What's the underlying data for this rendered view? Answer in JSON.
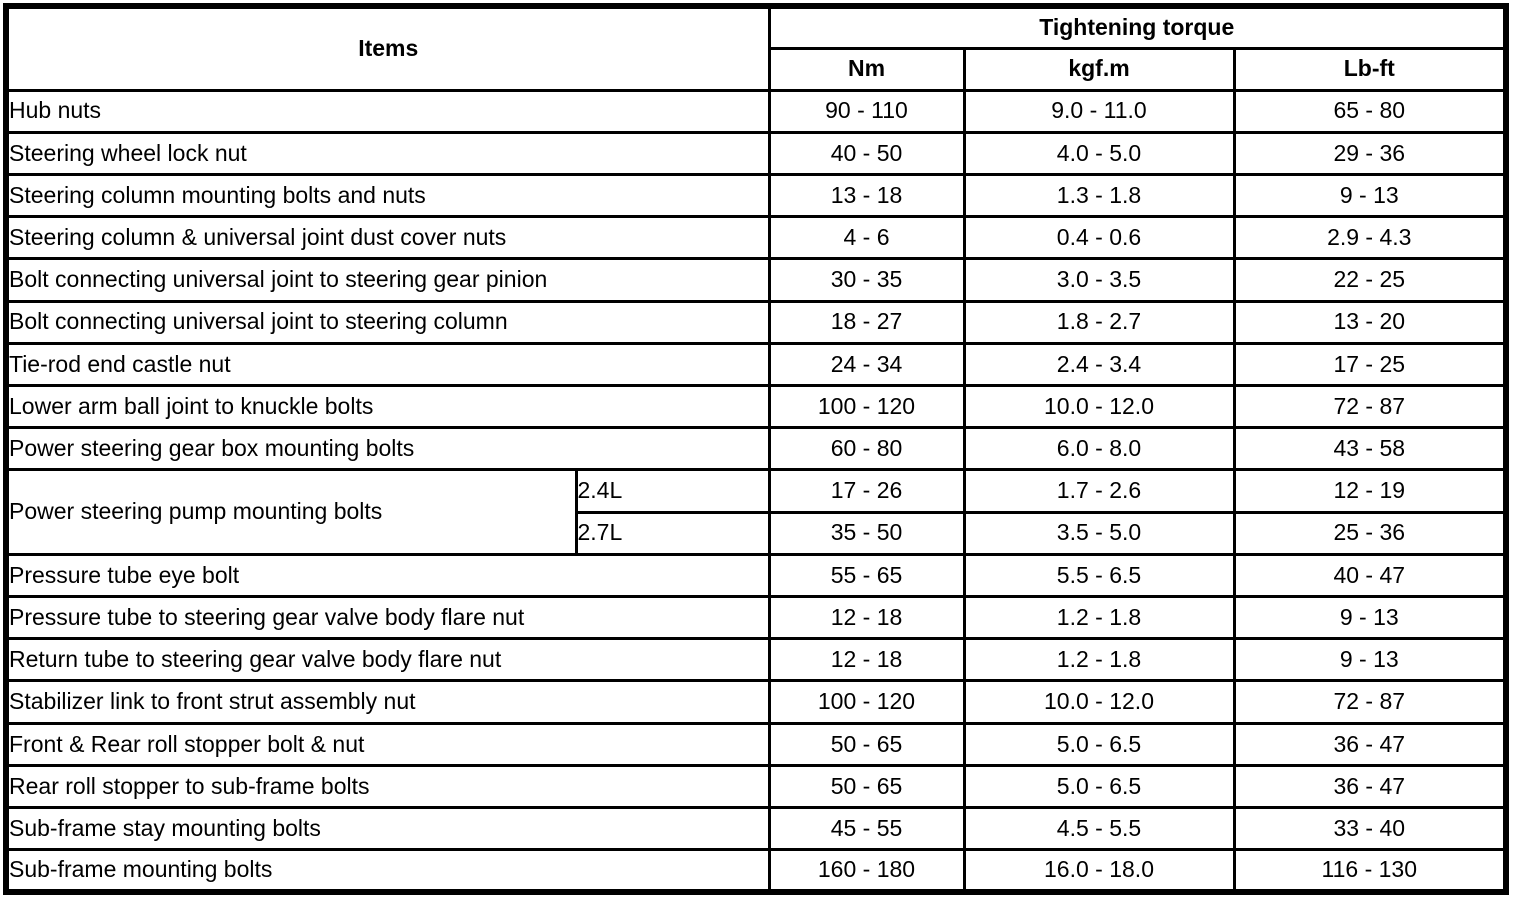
{
  "table": {
    "header": {
      "items_label": "Items",
      "torque_label": "Tightening torque",
      "units": [
        "Nm",
        "kgf.m",
        "Lb-ft"
      ]
    },
    "rows": [
      {
        "item": "Hub nuts",
        "nm": "90 - 110",
        "kgfm": "9.0 - 11.0",
        "lbft": "65 - 80"
      },
      {
        "item": "Steering wheel lock nut",
        "nm": "40 - 50",
        "kgfm": "4.0 - 5.0",
        "lbft": "29 - 36"
      },
      {
        "item": "Steering column mounting bolts and nuts",
        "nm": "13 - 18",
        "kgfm": "1.3 - 1.8",
        "lbft": "9 - 13"
      },
      {
        "item": "Steering column & universal joint dust cover nuts",
        "nm": "4 - 6",
        "kgfm": "0.4 - 0.6",
        "lbft": "2.9 - 4.3"
      },
      {
        "item": "Bolt connecting universal joint to steering gear pinion",
        "nm": "30 - 35",
        "kgfm": "3.0 - 3.5",
        "lbft": "22 - 25"
      },
      {
        "item": "Bolt connecting universal joint to steering column",
        "nm": "18 - 27",
        "kgfm": "1.8 - 2.7",
        "lbft": "13 - 20"
      },
      {
        "item": "Tie-rod end castle nut",
        "nm": "24 - 34",
        "kgfm": "2.4 - 3.4",
        "lbft": "17 - 25"
      },
      {
        "item": "Lower arm ball joint to knuckle bolts",
        "nm": "100 - 120",
        "kgfm": "10.0 - 12.0",
        "lbft": "72 - 87"
      },
      {
        "item": "Power steering gear box mounting bolts",
        "nm": "60 - 80",
        "kgfm": "6.0 - 8.0",
        "lbft": "43 - 58"
      },
      {
        "item": "Power steering pump mounting bolts",
        "variants": [
          {
            "engine": "2.4L",
            "nm": "17 - 26",
            "kgfm": "1.7 - 2.6",
            "lbft": "12 - 19"
          },
          {
            "engine": "2.7L",
            "nm": "35 - 50",
            "kgfm": "3.5 - 5.0",
            "lbft": "25 - 36"
          }
        ]
      },
      {
        "item": "Pressure tube eye bolt",
        "nm": "55 - 65",
        "kgfm": "5.5 - 6.5",
        "lbft": "40 - 47"
      },
      {
        "item": "Pressure tube to steering gear valve body flare nut",
        "nm": "12 - 18",
        "kgfm": "1.2 - 1.8",
        "lbft": "9 - 13"
      },
      {
        "item": "Return tube to steering gear valve body flare nut",
        "nm": "12 - 18",
        "kgfm": "1.2 - 1.8",
        "lbft": "9 - 13"
      },
      {
        "item": "Stabilizer link to front strut assembly nut",
        "nm": "100 - 120",
        "kgfm": "10.0 - 12.0",
        "lbft": "72 - 87"
      },
      {
        "item": "Front & Rear roll stopper bolt & nut",
        "nm": "50 - 65",
        "kgfm": "5.0 - 6.5",
        "lbft": "36 - 47"
      },
      {
        "item": "Rear roll stopper to sub-frame bolts",
        "nm": "50 - 65",
        "kgfm": "5.0 - 6.5",
        "lbft": "36 - 47"
      },
      {
        "item": "Sub-frame stay mounting bolts",
        "nm": "45 - 55",
        "kgfm": "4.5 - 5.5",
        "lbft": "33 - 40"
      },
      {
        "item": "Sub-frame mounting bolts",
        "nm": "160 - 180",
        "kgfm": "16.0 - 18.0",
        "lbft": "116 - 130"
      }
    ]
  }
}
